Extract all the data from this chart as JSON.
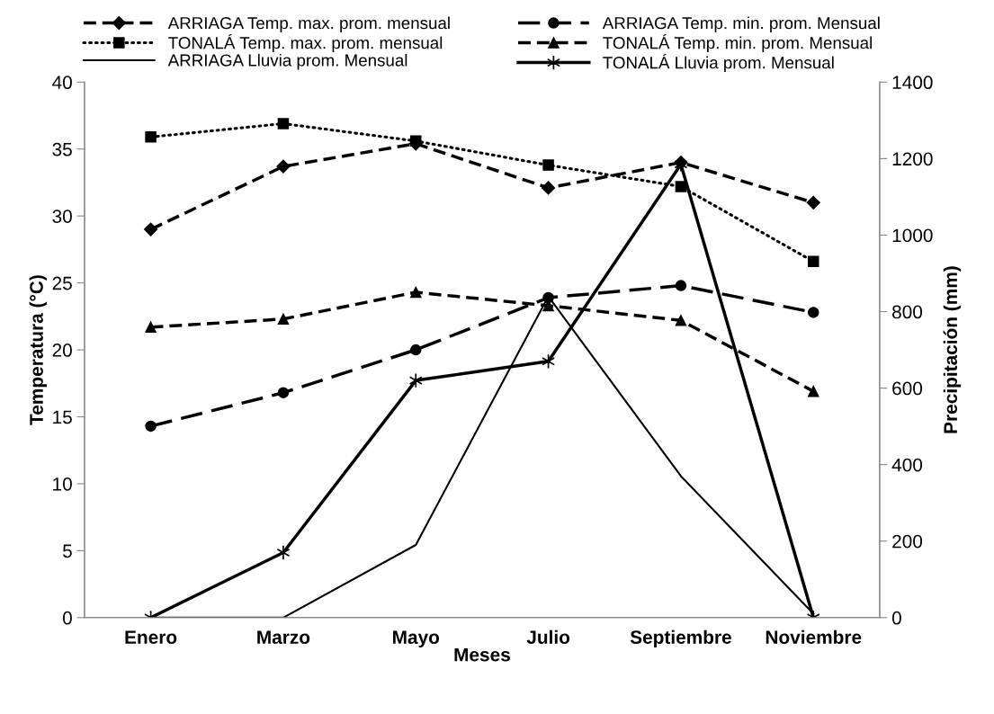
{
  "chart_data": {
    "type": "line",
    "xlabel": "Meses",
    "ylabel": "Temperatura (°C)",
    "y2label": "Precipitación (mm)",
    "categories": [
      "Enero",
      "Marzo",
      "Mayo",
      "Julio",
      "Septiembre",
      "Noviembre"
    ],
    "ylim": [
      0,
      40
    ],
    "yticks": [
      0,
      5,
      10,
      15,
      20,
      25,
      30,
      35,
      40
    ],
    "y2lim": [
      0,
      1400
    ],
    "y2ticks": [
      0,
      200,
      400,
      600,
      800,
      1000,
      1200,
      1400
    ],
    "grid": false,
    "legend": "top",
    "series": [
      {
        "name": "ARRIAGA Temp. max. prom. mensual",
        "color": "#000000",
        "marker": "diamond",
        "line_style": "dashed",
        "values": [
          29.0,
          33.7,
          35.4,
          32.1,
          34.0,
          31.0
        ]
      },
      {
        "name": "TONALÁ Temp. max. prom. mensual",
        "color": "#000000",
        "marker": "square",
        "line_style": "dotted",
        "values": [
          35.9,
          36.9,
          35.6,
          33.8,
          32.2,
          26.6
        ]
      },
      {
        "name": "ARRIAGA Lluvia prom. Mensual",
        "color": "#000000",
        "marker": "none",
        "line_style": "solid",
        "axis": "y2",
        "values": [
          0,
          0,
          190,
          840,
          370,
          10
        ]
      },
      {
        "name": "ARRIAGA Temp. min. prom. Mensual",
        "color": "#000000",
        "marker": "circle",
        "line_style": "longdash",
        "values": [
          14.3,
          16.8,
          20.0,
          23.9,
          24.8,
          22.8
        ]
      },
      {
        "name": "TONALÁ Temp. min. prom. Mensual",
        "color": "#000000",
        "marker": "triangle",
        "line_style": "dashed",
        "values": [
          21.7,
          22.3,
          24.3,
          23.3,
          22.2,
          16.9
        ]
      },
      {
        "name": "TONALÁ Lluvia prom. Mensual",
        "color": "#000000",
        "marker": "cross",
        "line_style": "solid",
        "axis": "y2",
        "values": [
          0,
          170,
          620,
          670,
          1185,
          0
        ]
      }
    ]
  }
}
